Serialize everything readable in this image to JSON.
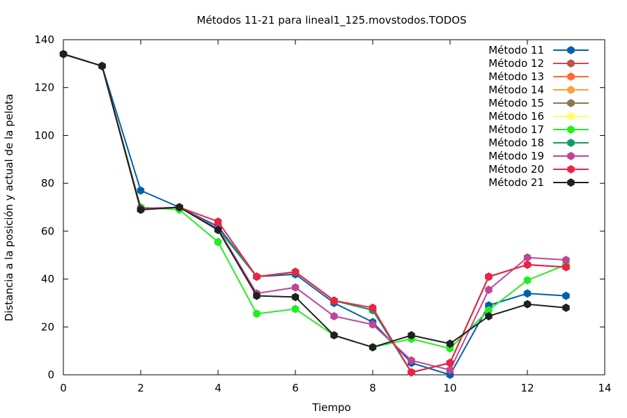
{
  "chart_data": {
    "type": "line",
    "title": "Métodos 11-21 para lineal1_125.movstodos.TODOS",
    "xlabel": "Tiempo",
    "ylabel": "Distancia a la posición y actual de la pelota",
    "xlim": [
      0,
      14
    ],
    "ylim": [
      0,
      140
    ],
    "xticks": [
      0,
      2,
      4,
      6,
      8,
      10,
      12,
      14
    ],
    "yticks": [
      0,
      20,
      40,
      60,
      80,
      100,
      120,
      140
    ],
    "grid": false,
    "legend_position": "top-right",
    "x": [
      0,
      1,
      2,
      3,
      4,
      5,
      6,
      7,
      8,
      9,
      10,
      11,
      12,
      13
    ],
    "series": [
      {
        "name": "Método 11",
        "color": "#0060ad",
        "values": [
          134,
          129,
          77,
          70,
          62,
          41,
          42,
          30,
          22,
          5,
          0,
          29,
          34,
          33
        ]
      },
      {
        "name": "Método 12",
        "color": "#c0504d",
        "values": [
          134,
          129,
          69,
          70,
          61,
          41,
          43,
          31,
          27,
          1,
          5,
          41,
          46,
          45
        ]
      },
      {
        "name": "Método 13",
        "color": "#ff6a33",
        "values": [
          134,
          129,
          69,
          70,
          61,
          41,
          43,
          31,
          27,
          1,
          5,
          41,
          46,
          45
        ]
      },
      {
        "name": "Método 14",
        "color": "#ffa040",
        "values": [
          134,
          129,
          69,
          70,
          61,
          41,
          43,
          31,
          27,
          1,
          5,
          41,
          46,
          45
        ]
      },
      {
        "name": "Método 15",
        "color": "#8b7755",
        "values": [
          134,
          129,
          69,
          70,
          61,
          41,
          43,
          31,
          27,
          1,
          5,
          41,
          46,
          45
        ]
      },
      {
        "name": "Método 16",
        "color": "#ffff66",
        "values": [
          134,
          129,
          69,
          70,
          61,
          41,
          43,
          31,
          27,
          1,
          5,
          41,
          46,
          45
        ]
      },
      {
        "name": "Método 17",
        "color": "#22ee22",
        "values": [
          134,
          129,
          70,
          69,
          55.5,
          25.5,
          27.5,
          16.5,
          11.5,
          15,
          11,
          27,
          39.5,
          46
        ]
      },
      {
        "name": "Método 18",
        "color": "#109a70",
        "values": [
          134,
          129,
          69,
          70,
          61,
          41,
          43,
          31,
          27,
          1,
          5,
          41,
          46,
          45
        ]
      },
      {
        "name": "Método 19",
        "color": "#c04597",
        "values": [
          134,
          129,
          69.5,
          70,
          61,
          34,
          36.5,
          24.5,
          21,
          6,
          2,
          35.5,
          49,
          48
        ]
      },
      {
        "name": "Método 20",
        "color": "#ee2244",
        "values": [
          134,
          129,
          69,
          70,
          64,
          41,
          43,
          31,
          28,
          1,
          5,
          41,
          46,
          45
        ]
      },
      {
        "name": "Método 21",
        "color": "#202020",
        "values": [
          134,
          129,
          69,
          70,
          60.5,
          33,
          32.5,
          16.5,
          11.5,
          16.5,
          13,
          24.5,
          29.5,
          28
        ]
      }
    ]
  }
}
